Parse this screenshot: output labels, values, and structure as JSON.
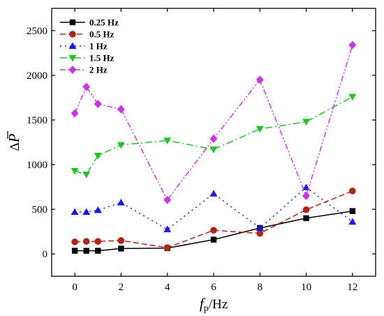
{
  "chart_data": {
    "type": "line",
    "x": [
      0,
      0.5,
      1,
      2,
      4,
      6,
      8,
      10,
      12
    ],
    "xlim": [
      -1,
      13
    ],
    "ylim": [
      -250,
      2750
    ],
    "xticks": [
      0,
      2,
      4,
      6,
      8,
      10,
      12
    ],
    "yticks": [
      0,
      500,
      1000,
      1500,
      2000,
      2500
    ],
    "xlabel": {
      "main": "f",
      "sub": "p",
      "rest": "/Hz"
    },
    "ylabel": {
      "prefix": "Δ",
      "symbol": "P"
    },
    "legend_position": "top-left",
    "grid": false,
    "series": [
      {
        "name": "0.25 Hz",
        "color": "#000000",
        "marker": "square",
        "dash": "",
        "values": [
          35,
          35,
          35,
          60,
          65,
          160,
          290,
          400,
          480
        ]
      },
      {
        "name": "0.5 Hz",
        "color": "#b02418",
        "marker": "circle",
        "dash": "8 4",
        "values": [
          135,
          140,
          140,
          150,
          70,
          265,
          230,
          495,
          705
        ]
      },
      {
        "name": "1 Hz",
        "color": "#1a1ae6",
        "marker": "triangle-up",
        "dash": "2 5",
        "values": [
          470,
          470,
          490,
          575,
          275,
          675,
          290,
          745,
          360
        ]
      },
      {
        "name": "1.5 Hz",
        "color": "#22c02a",
        "marker": "triangle-down",
        "dash": "10 4 2 4",
        "values": [
          930,
          890,
          1100,
          1220,
          1270,
          1170,
          1400,
          1480,
          1760
        ]
      },
      {
        "name": "2 Hz",
        "color": "#cc33e6",
        "marker": "diamond",
        "dash": "8 3 2 3 2 3",
        "values": [
          1575,
          1870,
          1680,
          1620,
          605,
          1290,
          1950,
          650,
          2340
        ]
      }
    ]
  }
}
